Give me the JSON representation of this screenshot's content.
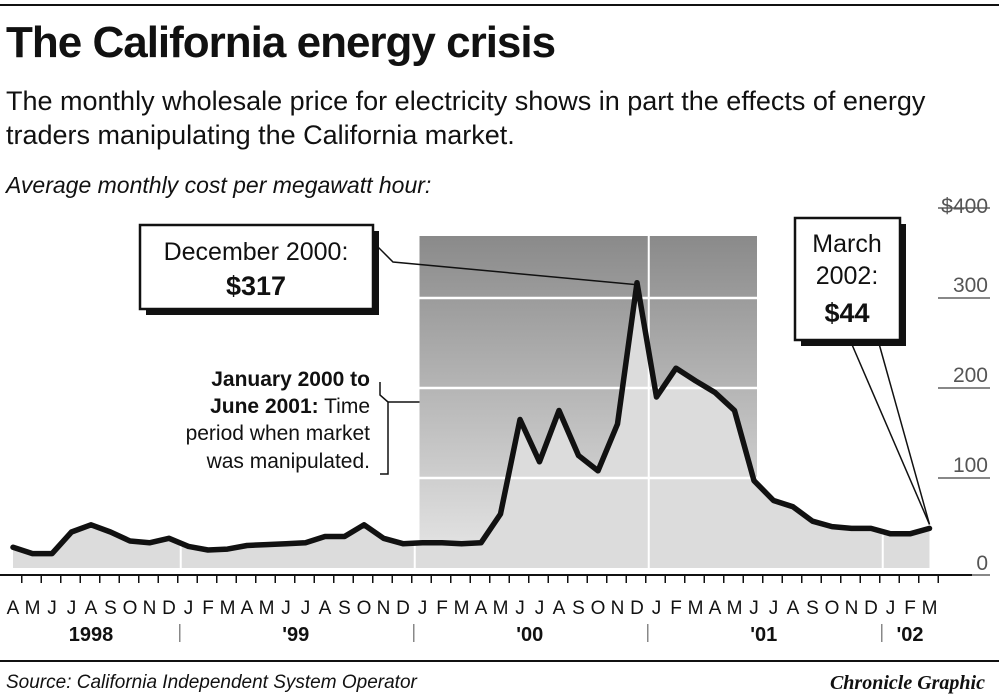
{
  "header": {
    "title": "The California energy crisis",
    "subtitle": "The monthly wholesale price for electricity shows in part the effects of energy traders manipulating the California market.",
    "caption": "Average monthly cost per megawatt hour:"
  },
  "footer": {
    "source": "Source: California Independent System Operator",
    "credit": "Chronicle Graphic"
  },
  "chart_data": {
    "type": "area",
    "title": "The California energy crisis",
    "ylabel": "Average monthly cost per megawatt hour:",
    "ylim": [
      0,
      400
    ],
    "y_ticks": [
      "$400",
      "300",
      "200",
      "100",
      "0"
    ],
    "y_tick_values": [
      400,
      300,
      200,
      100,
      0
    ],
    "x": [
      "Apr 1998",
      "May 1998",
      "Jun 1998",
      "Jul 1998",
      "Aug 1998",
      "Sep 1998",
      "Oct 1998",
      "Nov 1998",
      "Dec 1998",
      "Jan 1999",
      "Feb 1999",
      "Mar 1999",
      "Apr 1999",
      "May 1999",
      "Jun 1999",
      "Jul 1999",
      "Aug 1999",
      "Sep 1999",
      "Oct 1999",
      "Nov 1999",
      "Dec 1999",
      "Jan 2000",
      "Feb 2000",
      "Mar 2000",
      "Apr 2000",
      "May 2000",
      "Jun 2000",
      "Jul 2000",
      "Aug 2000",
      "Sep 2000",
      "Oct 2000",
      "Nov 2000",
      "Dec 2000",
      "Jan 2001",
      "Feb 2001",
      "Mar 2001",
      "Apr 2001",
      "May 2001",
      "Jun 2001",
      "Jul 2001",
      "Aug 2001",
      "Sep 2001",
      "Oct 2001",
      "Nov 2001",
      "Dec 2001",
      "Jan 2002",
      "Feb 2002",
      "Mar 2002"
    ],
    "month_letters": [
      "A",
      "M",
      "J",
      "J",
      "A",
      "S",
      "O",
      "N",
      "D",
      "J",
      "F",
      "M",
      "A",
      "M",
      "J",
      "J",
      "A",
      "S",
      "O",
      "N",
      "D",
      "J",
      "F",
      "M",
      "A",
      "M",
      "J",
      "J",
      "A",
      "S",
      "O",
      "N",
      "D",
      "J",
      "F",
      "M",
      "A",
      "M",
      "J",
      "J",
      "A",
      "S",
      "O",
      "N",
      "D",
      "J",
      "F",
      "M"
    ],
    "values": [
      23,
      16,
      16,
      40,
      48,
      40,
      30,
      28,
      33,
      24,
      20,
      21,
      25,
      26,
      27,
      28,
      35,
      35,
      48,
      33,
      27,
      28,
      28,
      27,
      28,
      60,
      165,
      118,
      175,
      125,
      108,
      160,
      317,
      190,
      222,
      208,
      195,
      175,
      97,
      75,
      68,
      52,
      46,
      44,
      44,
      38,
      38,
      44
    ],
    "year_labels": [
      {
        "label": "1998",
        "start": 0,
        "end": 8
      },
      {
        "label": "'99",
        "start": 9,
        "end": 20
      },
      {
        "label": "'00",
        "start": 21,
        "end": 32
      },
      {
        "label": "'01",
        "start": 33,
        "end": 44
      },
      {
        "label": "'02",
        "start": 45,
        "end": 47
      }
    ],
    "shaded_period": {
      "start": 21,
      "end": 38
    },
    "annotations": [
      {
        "lines": [
          "December 2000:",
          "$317"
        ],
        "index": 32
      },
      {
        "lines": [
          "March",
          "2002:",
          "$44"
        ],
        "index": 47
      },
      {
        "lines": [
          {
            "bold": "January 2000 to",
            "normal": ""
          },
          {
            "bold": "June 2001:",
            "normal": " Time"
          },
          {
            "bold": "",
            "normal": "period when market"
          },
          {
            "bold": "",
            "normal": "was manipulated."
          }
        ]
      }
    ],
    "colors": {
      "line": "#111111",
      "fill": "#dcdcdc",
      "shade_top": "#8a8a8a",
      "shade_bottom": "#e8e8e8",
      "gridline": "#ffffff"
    },
    "grid": true
  }
}
